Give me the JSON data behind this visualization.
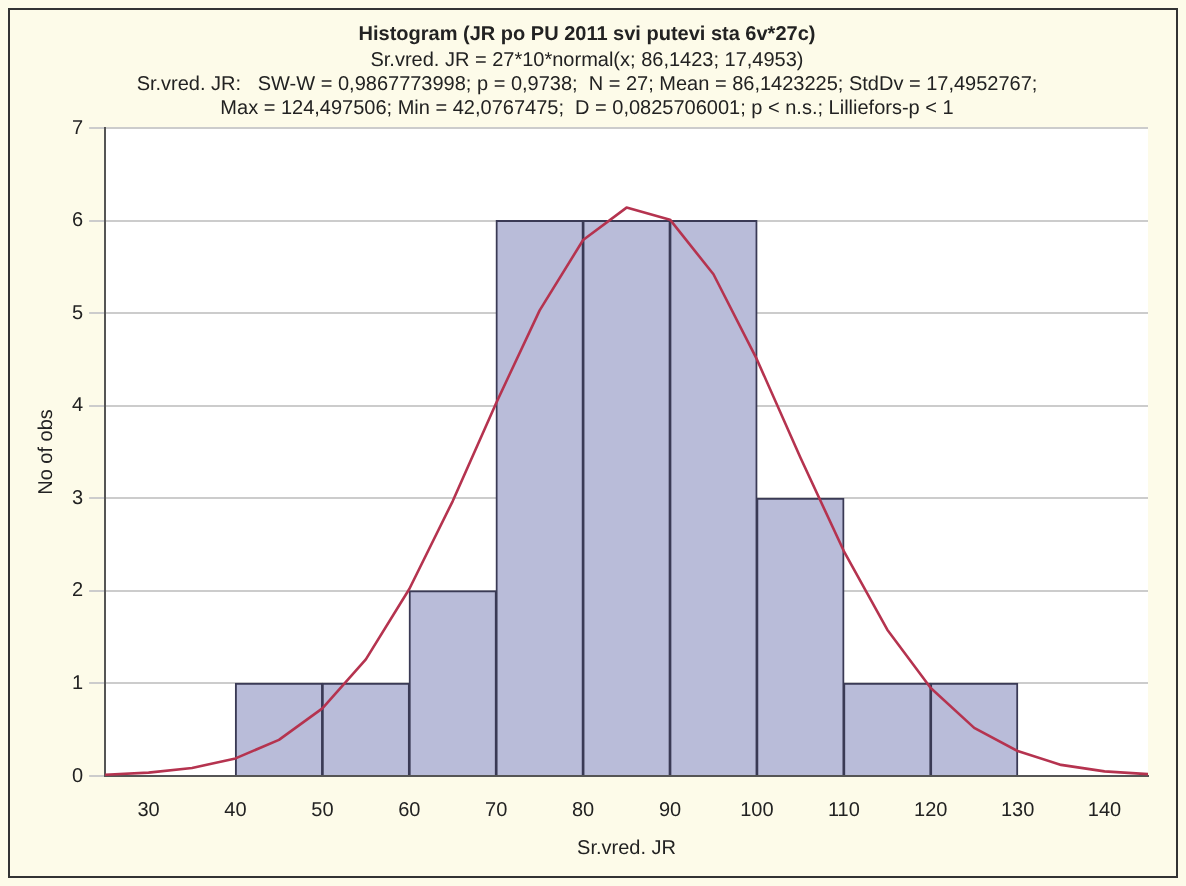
{
  "chart_data": {
    "type": "histogram",
    "title": "Histogram (JR po PU 2011 svi putevi sta 6v*27c)",
    "subtitle": "Sr.vred. JR = 27*10*normal(x; 86,1423; 17,4953)",
    "annotations": [
      "Sr.vred. JR:   SW-W = 0,9867773998; p = 0,9738;  N = 27; Mean = 86,1423225; StdDv = 17,4952767;",
      "Max = 124,497506; Min = 42,0767475;  D = 0,0825706001; p < n.s.; Lilliefors-p < 1"
    ],
    "xlabel": "Sr.vred. JR",
    "ylabel": "No of obs",
    "bins": [
      40,
      50,
      60,
      70,
      80,
      90,
      100,
      110,
      120,
      130
    ],
    "values": [
      1,
      1,
      2,
      6,
      6,
      6,
      3,
      1,
      1
    ],
    "color": "#b9bcd9",
    "xlim": [
      25,
      145
    ],
    "xticks": [
      30,
      40,
      50,
      60,
      70,
      80,
      90,
      100,
      110,
      120,
      130,
      140
    ],
    "ylim": [
      0,
      7
    ],
    "yticks": [
      0,
      1,
      2,
      3,
      4,
      5,
      6,
      7
    ],
    "grid": "y",
    "series": [
      {
        "type": "line",
        "color": "#b5334f",
        "x": [
          25,
          30,
          35,
          40,
          45,
          50,
          55,
          60,
          65,
          70,
          75,
          80,
          85,
          90,
          95,
          100,
          105,
          110,
          115,
          120,
          125,
          130,
          135,
          140,
          145
        ],
        "values": [
          0.014,
          0.036,
          0.086,
          0.19,
          0.39,
          0.73,
          1.26,
          2.02,
          2.97,
          4.03,
          5.03,
          5.79,
          6.14,
          6.01,
          5.42,
          4.5,
          3.44,
          2.43,
          1.58,
          0.95,
          0.52,
          0.27,
          0.12,
          0.05,
          0.02
        ]
      }
    ]
  }
}
